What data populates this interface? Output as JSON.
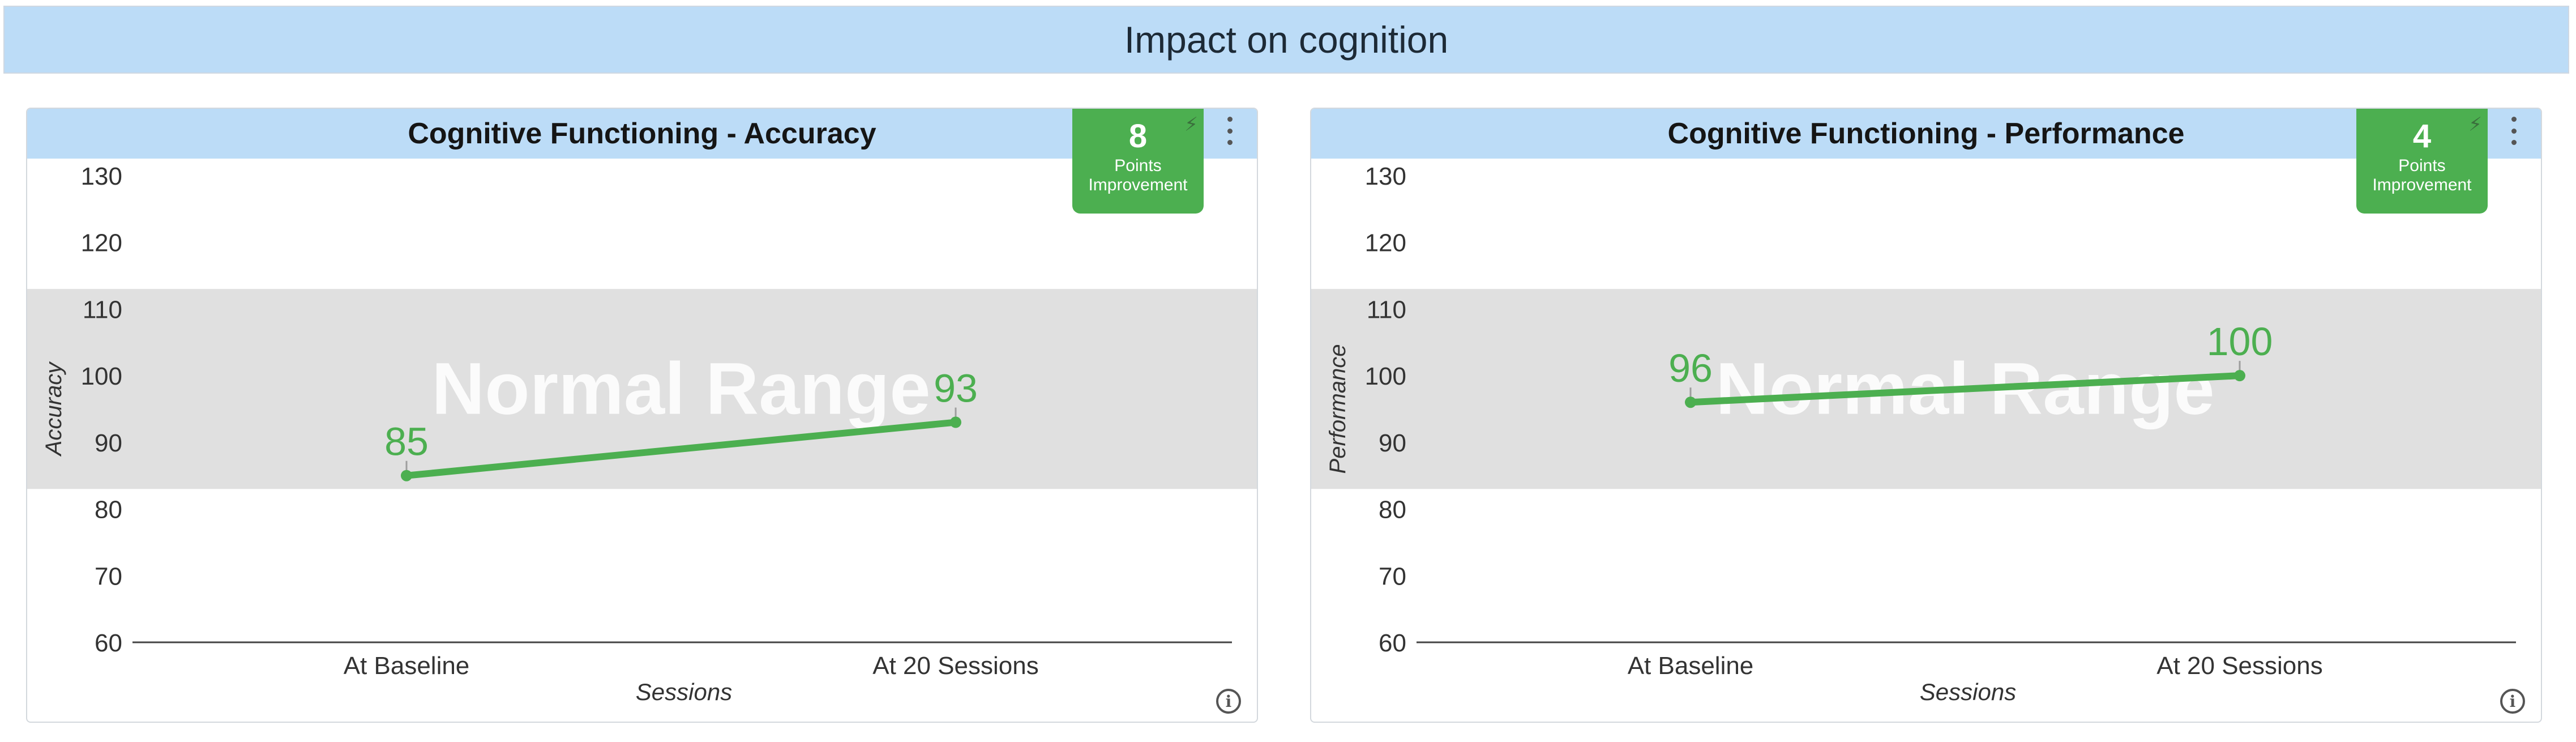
{
  "page": {
    "title": "Impact on cognition"
  },
  "panels": [
    {
      "id": "accuracy",
      "badge": {
        "value": "8",
        "line1": "Points",
        "line2": "Improvement"
      },
      "chart_data": {
        "type": "line",
        "title": "Cognitive Functioning - Accuracy",
        "xlabel": "Sessions",
        "ylabel": "Accuracy",
        "categories": [
          "At Baseline",
          "At 20 Sessions"
        ],
        "series": [
          {
            "values": [
              85,
              93
            ],
            "color": "#4caf50"
          }
        ],
        "ylim": [
          60,
          130
        ],
        "yticks": [
          60,
          70,
          80,
          90,
          100,
          110,
          120,
          130
        ],
        "band": {
          "label": "Normal Range",
          "from": 83,
          "to": 113,
          "color": "#e0e0e0"
        },
        "grid": false,
        "data_labels": [
          "85",
          "93"
        ]
      }
    },
    {
      "id": "performance",
      "badge": {
        "value": "4",
        "line1": "Points",
        "line2": "Improvement"
      },
      "chart_data": {
        "type": "line",
        "title": "Cognitive Functioning - Performance",
        "xlabel": "Sessions",
        "ylabel": "Performance",
        "categories": [
          "At Baseline",
          "At 20 Sessions"
        ],
        "series": [
          {
            "values": [
              96,
              100
            ],
            "color": "#4caf50"
          }
        ],
        "ylim": [
          60,
          130
        ],
        "yticks": [
          60,
          70,
          80,
          90,
          100,
          110,
          120,
          130
        ],
        "band": {
          "label": "Normal Range",
          "from": 83,
          "to": 113,
          "color": "#e0e0e0"
        },
        "grid": false,
        "data_labels": [
          "96",
          "100"
        ]
      }
    }
  ]
}
